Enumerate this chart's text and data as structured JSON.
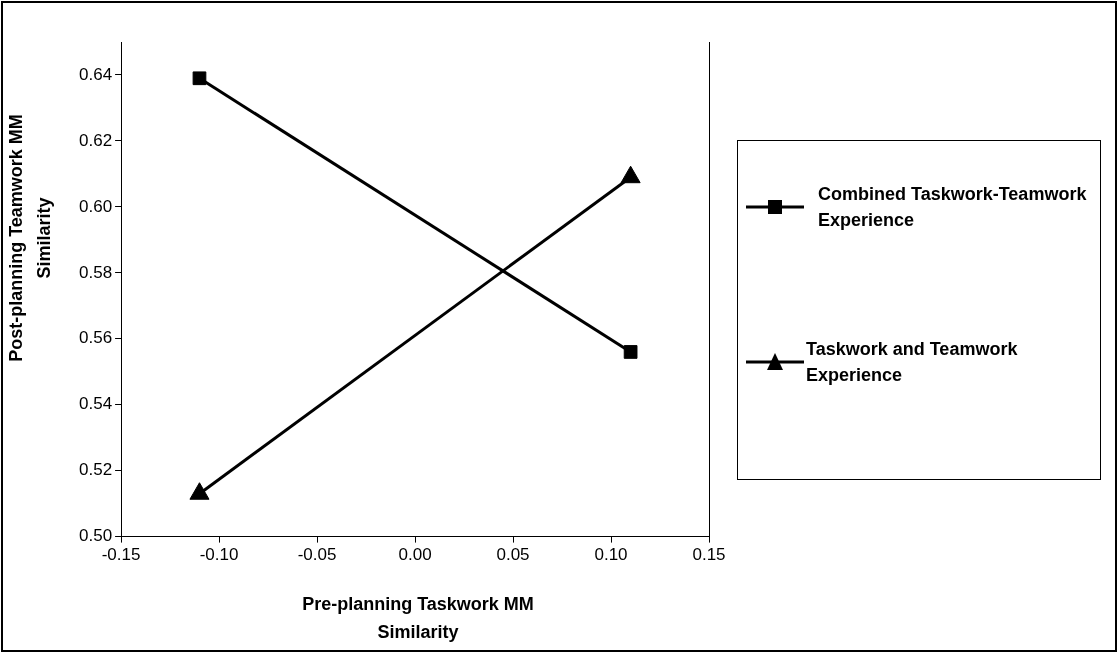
{
  "chart_data": {
    "type": "line",
    "xlabel": "Pre-planning Taskwork MM Similarity",
    "ylabel": "Post-planning Teamwork MM Similarity",
    "x": [
      -0.11,
      0.11
    ],
    "series": [
      {
        "name": "Combined Taskwork-Teamwork Experience",
        "color": "#000000",
        "marker": "square",
        "values": [
          0.639,
          0.556
        ]
      },
      {
        "name": "Taskwork and Teamwork Experience",
        "color": "#000000",
        "marker": "triangle",
        "values": [
          0.513,
          0.609
        ]
      }
    ],
    "xlim": [
      -0.15,
      0.15
    ],
    "xticks": [
      {
        "value": -0.15,
        "label": "-0.15"
      },
      {
        "value": -0.1,
        "label": "-0.10"
      },
      {
        "value": -0.05,
        "label": "-0.05"
      },
      {
        "value": 0,
        "label": "0.00"
      },
      {
        "value": 0.05,
        "label": "0.05"
      },
      {
        "value": 0.1,
        "label": "0.10"
      },
      {
        "value": 0.15,
        "label": "0.15"
      }
    ],
    "ylim": [
      0.5,
      0.65
    ],
    "yticks": [
      {
        "value": 0.5,
        "label": "0.50"
      },
      {
        "value": 0.52,
        "label": "0.52"
      },
      {
        "value": 0.54,
        "label": "0.54"
      },
      {
        "value": 0.56,
        "label": "0.56"
      },
      {
        "value": 0.58,
        "label": "0.58"
      },
      {
        "value": 0.6,
        "label": "0.60"
      },
      {
        "value": 0.62,
        "label": "0.62"
      },
      {
        "value": 0.64,
        "label": "0.64"
      }
    ],
    "grid": false,
    "legend": "right",
    "line_style": "solid"
  }
}
